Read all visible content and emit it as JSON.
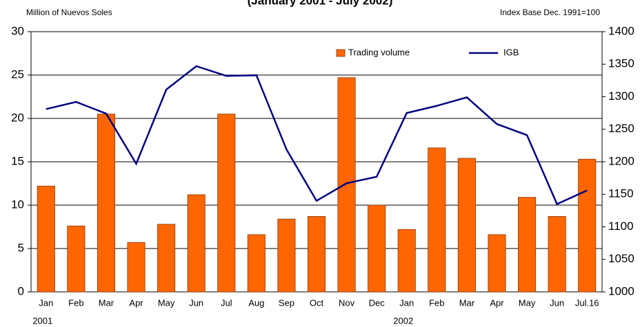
{
  "chart_data": {
    "type": "bar",
    "title": "(January 2001 - July 2002)",
    "y_label": "Million of Nuevos Soles",
    "y2_label": "Index Base Dec. 1991=100",
    "categories": [
      "Jan",
      "Feb",
      "Mar",
      "Apr",
      "May",
      "Jun",
      "Jul",
      "Aug",
      "Sep",
      "Oct",
      "Nov",
      "Dec",
      "Jan",
      "Feb",
      "Mar",
      "Apr",
      "May",
      "Jun",
      "Jul.16"
    ],
    "years": [
      "2001",
      "2002"
    ],
    "series": [
      {
        "name": "Trading volume",
        "type": "bar",
        "color": "#ff6600",
        "values": [
          12.2,
          7.6,
          20.5,
          5.7,
          7.8,
          11.2,
          20.5,
          6.6,
          8.4,
          8.7,
          24.7,
          10.0,
          7.2,
          16.6,
          15.4,
          6.6,
          10.9,
          8.7,
          15.3
        ]
      },
      {
        "name": "IGB",
        "type": "line",
        "axis": "y2",
        "color": "#000080",
        "values": [
          1281,
          1292,
          1274,
          1197,
          1311,
          1347,
          1332,
          1333,
          1219,
          1140,
          1167,
          1177,
          1275,
          1286,
          1299,
          1258,
          1241,
          1135,
          1156
        ]
      }
    ],
    "ylim": [
      0,
      30
    ],
    "yticks": [
      0,
      5,
      10,
      15,
      20,
      25,
      30
    ],
    "y2lim": [
      1000,
      1400
    ],
    "y2ticks": [
      1000,
      1050,
      1100,
      1150,
      1200,
      1250,
      1300,
      1350,
      1400
    ],
    "grid": true,
    "legend": "top"
  }
}
